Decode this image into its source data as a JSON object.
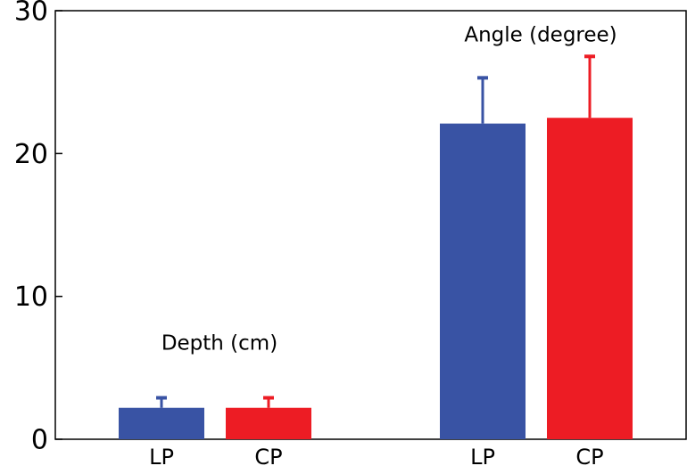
{
  "chart_data": {
    "type": "bar",
    "categories": [
      "Depth (cm)",
      "Angle (degree)"
    ],
    "series": [
      {
        "name": "LP",
        "color": "#3953a4",
        "values": [
          2.2,
          22.1
        ],
        "errors": [
          0.7,
          3.2
        ]
      },
      {
        "name": "CP",
        "color": "#ed1c24",
        "values": [
          2.2,
          22.5
        ],
        "errors": [
          0.7,
          4.3
        ]
      }
    ],
    "ylim": [
      0,
      30
    ],
    "yticks": [
      0,
      10,
      20,
      30
    ]
  }
}
